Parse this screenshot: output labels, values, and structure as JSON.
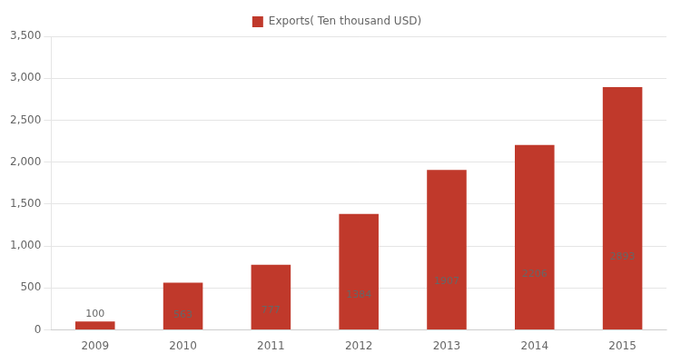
{
  "chart_data": {
    "type": "bar",
    "categories": [
      "2009",
      "2010",
      "2011",
      "2012",
      "2013",
      "2014",
      "2015"
    ],
    "series": [
      {
        "name": "Exports( Ten thousand USD)",
        "color": "#c0392b",
        "values": [
          100,
          563,
          777,
          1384,
          1907,
          2206,
          2893
        ]
      }
    ],
    "ylim": [
      0,
      3500
    ],
    "yticks": [
      0,
      500,
      1000,
      1500,
      2000,
      2500,
      3000,
      3500
    ],
    "grid": true,
    "legend": "top",
    "data_labels": true
  }
}
